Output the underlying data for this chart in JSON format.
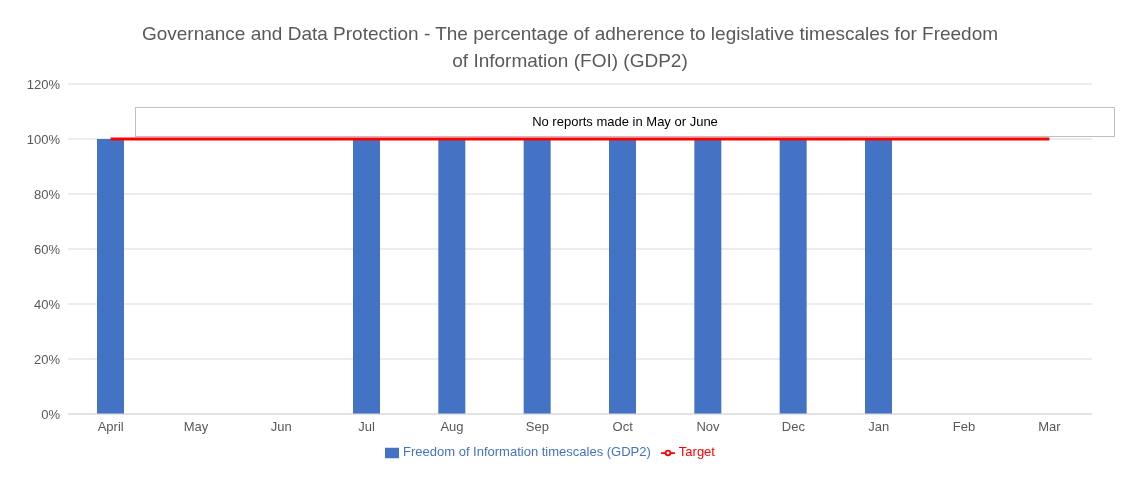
{
  "chart_data": {
    "type": "bar",
    "title": "Governance and Data Protection - The percentage of adherence to legislative timescales for Freedom of Information (FOI) (GDP2)",
    "categories": [
      "April",
      "May",
      "Jun",
      "Jul",
      "Aug",
      "Sep",
      "Oct",
      "Nov",
      "Dec",
      "Jan",
      "Feb",
      "Mar"
    ],
    "series": [
      {
        "name": "Freedom of Information timescales (GDP2)",
        "color": "#4472c4",
        "values": [
          100,
          null,
          null,
          100,
          100,
          100,
          100,
          100,
          100,
          100,
          null,
          null
        ]
      },
      {
        "name": "Target",
        "type": "line",
        "color": "#ff0000",
        "values": [
          100,
          100,
          100,
          100,
          100,
          100,
          100,
          100,
          100,
          100,
          100,
          100
        ]
      }
    ],
    "ylim": [
      0,
      120
    ],
    "yticks": [
      {
        "value": 0,
        "label": "0%"
      },
      {
        "value": 20,
        "label": "20%"
      },
      {
        "value": 40,
        "label": "40%"
      },
      {
        "value": 60,
        "label": "60%"
      },
      {
        "value": 80,
        "label": "80%"
      },
      {
        "value": 100,
        "label": "100%"
      },
      {
        "value": 120,
        "label": "120%"
      }
    ],
    "grid": "y",
    "legend": "bottom",
    "marker": "none",
    "line_style": "solid",
    "annotations": [
      "No reports made in May or June"
    ]
  }
}
